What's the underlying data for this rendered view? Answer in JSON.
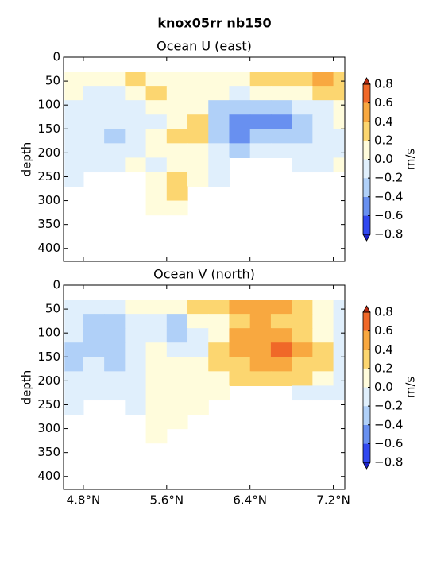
{
  "title": "knox05rr nb150",
  "chart_data": [
    {
      "type": "contourf",
      "title": "Ocean U (east)",
      "ylabel": "depth",
      "xlim": [
        4.61,
        7.31
      ],
      "xticks": [
        4.8,
        5.6,
        6.4,
        7.2
      ],
      "ylim": [
        0,
        427
      ],
      "y_inverted": true,
      "yticks": [
        0,
        50,
        100,
        150,
        200,
        250,
        300,
        350,
        400
      ],
      "x_edges": [
        4.62,
        4.8,
        5.0,
        5.2,
        5.4,
        5.6,
        5.8,
        6.0,
        6.2,
        6.4,
        6.6,
        6.8,
        7.0,
        7.2,
        7.3
      ],
      "depth_edges": [
        30,
        60,
        90,
        120,
        150,
        180,
        210,
        240,
        270,
        300,
        330
      ],
      "values": [
        [
          0,
          0.1,
          0.1,
          0.3,
          0.1,
          0.1,
          0,
          0.1,
          0.1,
          0.3,
          0.3,
          0.3,
          0.5,
          0.3
        ],
        [
          0.1,
          -0.1,
          -0.1,
          0.1,
          0.3,
          0.1,
          0.1,
          0,
          -0.1,
          0.1,
          0.1,
          0.1,
          0.3,
          0.3
        ],
        [
          -0.1,
          -0.1,
          -0.1,
          -0.1,
          0.1,
          0.1,
          0.1,
          -0.3,
          -0.3,
          -0.3,
          -0.3,
          -0.1,
          -0.1,
          0.1
        ],
        [
          -0.1,
          -0.1,
          -0.1,
          -0.1,
          -0.1,
          0.1,
          0.3,
          -0.3,
          -0.5,
          -0.5,
          -0.5,
          -0.3,
          -0.1,
          0.1
        ],
        [
          -0.1,
          -0.1,
          -0.3,
          -0.1,
          0.1,
          0.3,
          0.3,
          -0.3,
          -0.5,
          -0.3,
          -0.3,
          -0.3,
          -0.1,
          -0.1
        ],
        [
          -0.1,
          -0.1,
          -0.1,
          -0.1,
          0.1,
          0.1,
          0.1,
          -0.1,
          -0.3,
          -0.1,
          -0.1,
          -0.1,
          -0.1,
          -0.1
        ],
        [
          -0.1,
          -0.1,
          -0.1,
          0.1,
          -0.1,
          0.1,
          0.1,
          -0.1,
          null,
          null,
          null,
          -0.1,
          -0.1,
          0.1
        ],
        [
          -0.1,
          null,
          null,
          null,
          0.1,
          0.3,
          0,
          -0.1,
          null,
          null,
          null,
          null,
          null,
          null
        ],
        [
          null,
          null,
          null,
          null,
          0.1,
          0.3,
          null,
          null,
          null,
          null,
          null,
          null,
          null,
          null
        ],
        [
          null,
          null,
          null,
          null,
          0,
          0.1,
          null,
          null,
          null,
          null,
          null,
          null,
          null,
          null
        ]
      ],
      "colorbar": {
        "label": "m/s",
        "ticks": [
          {
            "value": 0.8,
            "label": "0.8"
          },
          {
            "value": 0.6,
            "label": "0.6"
          },
          {
            "value": 0.4,
            "label": "0.4"
          },
          {
            "value": 0.2,
            "label": "0.2"
          },
          {
            "value": 0,
            "label": "0.0"
          },
          {
            "value": -0.2,
            "label": "−0.2"
          },
          {
            "value": -0.4,
            "label": "−0.4"
          },
          {
            "value": -0.6,
            "label": "−0.6"
          },
          {
            "value": -0.8,
            "label": "−0.8"
          }
        ],
        "colors": [
          "#3048f0",
          "#6890f0",
          "#b0d0f8",
          "#e0effc",
          "#fffcdc",
          "#fcd670",
          "#f8a840",
          "#f06828"
        ],
        "under": "#1a20c8",
        "over": "#b82a10"
      }
    },
    {
      "type": "contourf",
      "title": "Ocean V (north)",
      "ylabel": "depth",
      "xlim": [
        4.61,
        7.31
      ],
      "xticks": [
        {
          "value": 4.8,
          "label": "4.8°N"
        },
        {
          "value": 5.6,
          "label": "5.6°N"
        },
        {
          "value": 6.4,
          "label": "6.4°N"
        },
        {
          "value": 7.2,
          "label": "7.2°N"
        }
      ],
      "ylim": [
        0,
        427
      ],
      "y_inverted": true,
      "yticks": [
        0,
        50,
        100,
        150,
        200,
        250,
        300,
        350,
        400
      ],
      "x_edges": [
        4.62,
        4.8,
        5.0,
        5.2,
        5.4,
        5.6,
        5.8,
        6.0,
        6.2,
        6.4,
        6.6,
        6.8,
        7.0,
        7.2,
        7.3
      ],
      "depth_edges": [
        30,
        60,
        90,
        120,
        150,
        180,
        210,
        240,
        270,
        300,
        330
      ],
      "values": [
        [
          -0.1,
          -0.1,
          -0.1,
          0,
          0,
          0.1,
          0.3,
          0.3,
          0.5,
          0.5,
          0.5,
          0.3,
          0.1,
          -0.1
        ],
        [
          -0.1,
          -0.3,
          -0.3,
          -0.1,
          -0.1,
          -0.3,
          0.1,
          0.1,
          0.3,
          0.5,
          0.3,
          0.3,
          0.1,
          -0.1
        ],
        [
          -0.1,
          -0.3,
          -0.3,
          -0.1,
          -0.1,
          -0.3,
          -0.1,
          0.1,
          0.5,
          0.5,
          0.5,
          0.3,
          0.1,
          -0.1
        ],
        [
          -0.3,
          -0.3,
          -0.3,
          -0.1,
          0,
          -0.1,
          -0.1,
          0.3,
          0.5,
          0.5,
          0.7,
          0.5,
          0.3,
          -0.1
        ],
        [
          -0.3,
          -0.1,
          -0.3,
          -0.1,
          0,
          0,
          0.1,
          0.3,
          0.3,
          0.5,
          0.5,
          0.3,
          0.3,
          -0.1
        ],
        [
          -0.1,
          -0.1,
          -0.1,
          -0.1,
          0,
          0,
          0.1,
          0.1,
          0.3,
          0.3,
          0.3,
          0.3,
          0.1,
          -0.1
        ],
        [
          -0.1,
          -0.1,
          -0.1,
          -0.1,
          0,
          0,
          0,
          0.1,
          null,
          null,
          null,
          -0.1,
          -0.1,
          -0.1
        ],
        [
          -0.1,
          null,
          null,
          -0.1,
          0,
          0,
          0.1,
          null,
          null,
          null,
          null,
          null,
          null,
          null
        ],
        [
          null,
          null,
          null,
          null,
          0,
          0,
          null,
          null,
          null,
          null,
          null,
          null,
          null,
          null
        ],
        [
          null,
          null,
          null,
          null,
          0,
          null,
          null,
          null,
          null,
          null,
          null,
          null,
          null,
          null
        ]
      ],
      "colorbar": {
        "label": "m/s",
        "ticks": [
          {
            "value": 0.8,
            "label": "0.8"
          },
          {
            "value": 0.6,
            "label": "0.6"
          },
          {
            "value": 0.4,
            "label": "0.4"
          },
          {
            "value": 0.2,
            "label": "0.2"
          },
          {
            "value": 0,
            "label": "0.0"
          },
          {
            "value": -0.2,
            "label": "−0.2"
          },
          {
            "value": -0.4,
            "label": "−0.4"
          },
          {
            "value": -0.6,
            "label": "−0.6"
          },
          {
            "value": -0.8,
            "label": "−0.8"
          }
        ],
        "colors": [
          "#3048f0",
          "#6890f0",
          "#b0d0f8",
          "#e0effc",
          "#fffcdc",
          "#fcd670",
          "#f8a840",
          "#f06828"
        ],
        "under": "#1a20c8",
        "over": "#b82a10"
      }
    }
  ]
}
